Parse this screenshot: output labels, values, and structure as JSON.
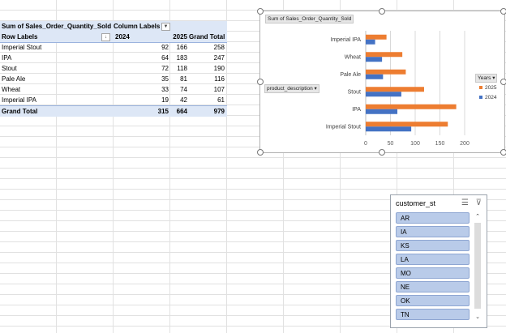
{
  "pivot": {
    "header1": {
      "value_label": "Sum of Sales_Order_Quantity_Sold",
      "column_labels": "Column Labels"
    },
    "header2": {
      "row_labels": "Row Labels",
      "y2024": "2024",
      "y2025": "2025",
      "grand_total": "Grand Total"
    },
    "rows": [
      {
        "label": "Imperial Stout",
        "y2024": "92",
        "y2025": "166",
        "total": "258"
      },
      {
        "label": "IPA",
        "y2024": "64",
        "y2025": "183",
        "total": "247"
      },
      {
        "label": "Stout",
        "y2024": "72",
        "y2025": "118",
        "total": "190"
      },
      {
        "label": "Pale Ale",
        "y2024": "35",
        "y2025": "81",
        "total": "116"
      },
      {
        "label": "Wheat",
        "y2024": "33",
        "y2025": "74",
        "total": "107"
      },
      {
        "label": "Imperial IPA",
        "y2024": "19",
        "y2025": "42",
        "total": "61"
      }
    ],
    "grand_total_row": {
      "label": "Grand Total",
      "y2024": "315",
      "y2025": "664",
      "total": "979"
    }
  },
  "chart": {
    "value_field_button": "Sum of Sales_Order_Quantity_Sold",
    "axis_field_button": "product_description",
    "legend_field_button": "Years",
    "colors": {
      "2024": "#4472c4",
      "2025": "#ed7d31"
    }
  },
  "chart_data": {
    "type": "bar",
    "orientation": "horizontal",
    "categories": [
      "Imperial Stout",
      "IPA",
      "Stout",
      "Pale Ale",
      "Wheat",
      "Imperial IPA"
    ],
    "series": [
      {
        "name": "2024",
        "values": [
          92,
          64,
          72,
          35,
          33,
          19
        ]
      },
      {
        "name": "2025",
        "values": [
          166,
          183,
          118,
          81,
          74,
          42
        ]
      }
    ],
    "xlim": [
      0,
      200
    ],
    "xticks": [
      "0",
      "50",
      "100",
      "150",
      "200"
    ],
    "grid": true,
    "legend": "right"
  },
  "slicer": {
    "title": "customer_st",
    "items": [
      "AR",
      "IA",
      "KS",
      "LA",
      "MO",
      "NE",
      "OK",
      "TN"
    ]
  }
}
